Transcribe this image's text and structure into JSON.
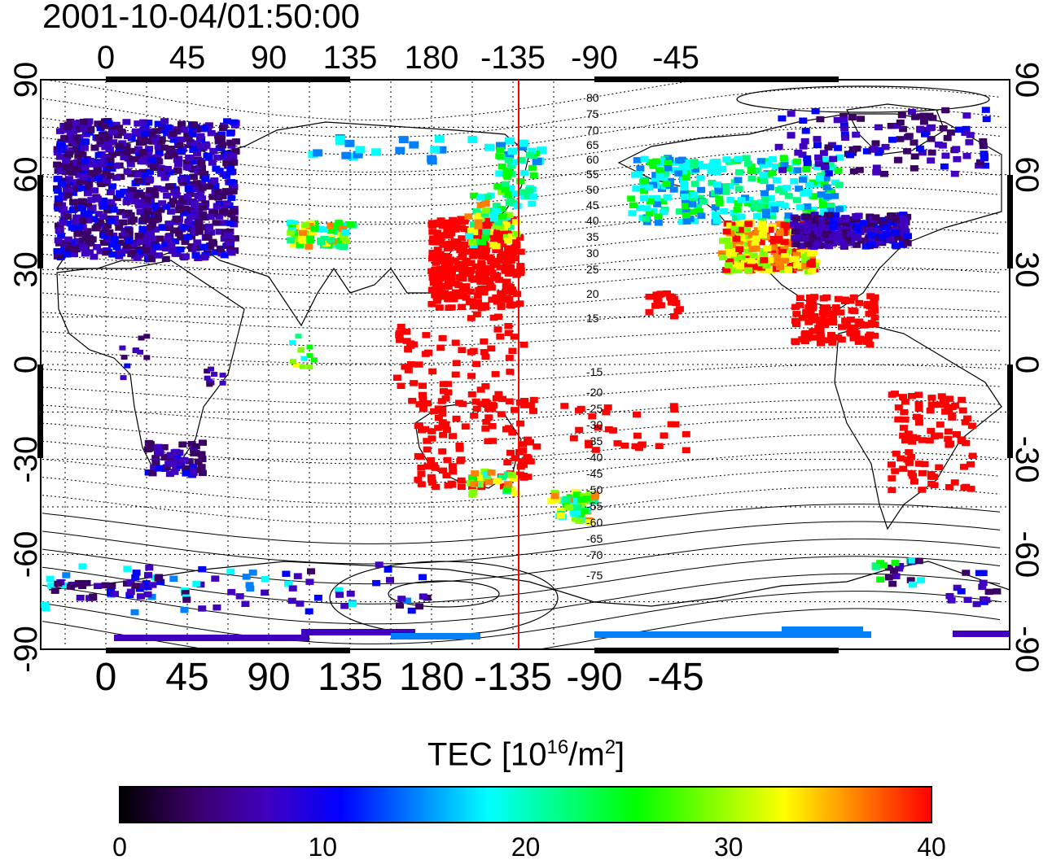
{
  "title": "2001-10-04/01:50:00",
  "map": {
    "x_tick_labels": [
      "0",
      "45",
      "90",
      "135",
      "180",
      "-135",
      "-90",
      "-45"
    ],
    "y_tick_labels": [
      "90",
      "60",
      "30",
      "0",
      "-30",
      "-60",
      "-90"
    ],
    "marker_line_color": "#ff0000",
    "contour_labels_north": [
      "80",
      "75",
      "70",
      "65",
      "60",
      "55",
      "50",
      "45",
      "40",
      "35",
      "30",
      "25",
      "20",
      "15"
    ],
    "contour_labels_south": [
      "-15",
      "-20",
      "-25",
      "-30",
      "-35",
      "-40",
      "-45",
      "-50",
      "-55",
      "-60",
      "-65",
      "-70",
      "-75"
    ]
  },
  "colorbar": {
    "label_main": "TEC  [10",
    "label_exp1": "16",
    "label_mid": "/m",
    "label_exp2": "2",
    "label_end": "]",
    "ticks": [
      "0",
      "10",
      "20",
      "30",
      "40"
    ],
    "colors": [
      "#000000",
      "#3a0066",
      "#4000c0",
      "#0000ff",
      "#0080ff",
      "#00ffff",
      "#00ff80",
      "#00ff00",
      "#80ff00",
      "#ffff00",
      "#ff8000",
      "#ff0000"
    ]
  }
}
